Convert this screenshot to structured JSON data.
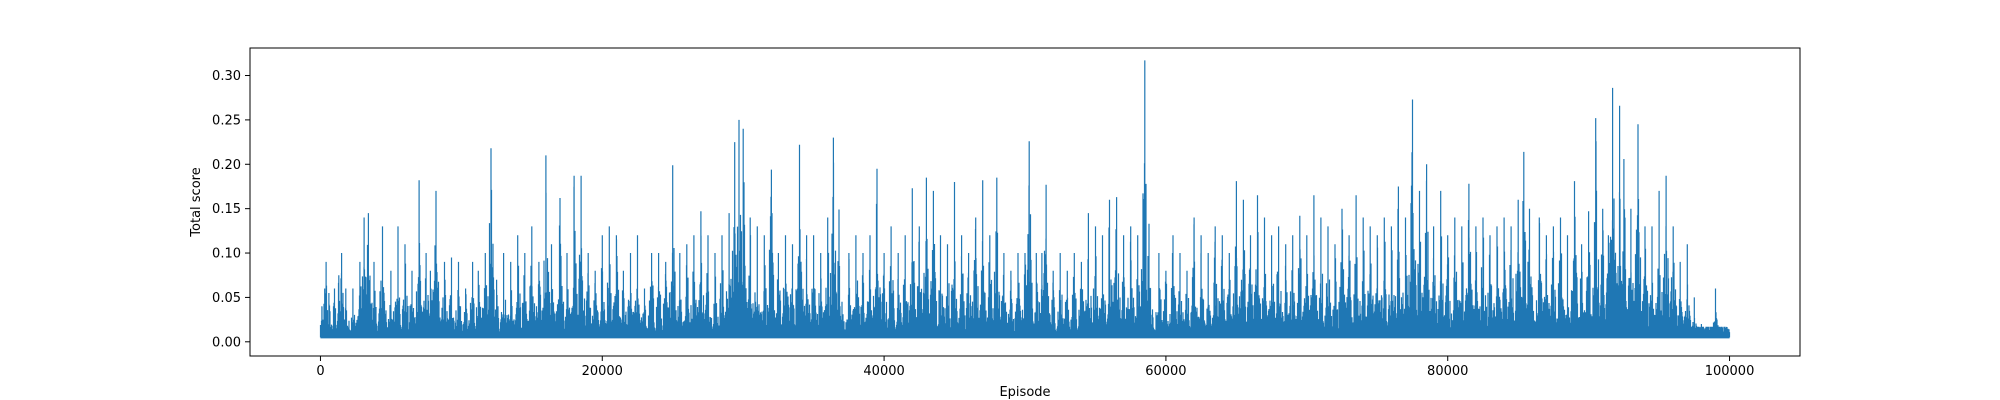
{
  "chart_data": {
    "type": "line",
    "title": "",
    "xlabel": "Episode",
    "ylabel": "Total score",
    "xlim": [
      -5000,
      105000
    ],
    "ylim": [
      -0.016,
      0.331
    ],
    "xticks": [
      0,
      20000,
      40000,
      60000,
      80000,
      100000
    ],
    "xtick_labels": [
      "0",
      "20000",
      "40000",
      "60000",
      "80000",
      "100000"
    ],
    "yticks": [
      0.0,
      0.05,
      0.1,
      0.15,
      0.2,
      0.25,
      0.3
    ],
    "ytick_labels": [
      "0.00",
      "0.05",
      "0.10",
      "0.15",
      "0.20",
      "0.25",
      "0.30"
    ],
    "grid": false,
    "series": [
      {
        "color": "#1f77b4",
        "x_start": 0,
        "x_end": 100000,
        "baseline": 0.005,
        "peaks": [
          [
            100,
            0.04
          ],
          [
            300,
            0.06
          ],
          [
            400,
            0.09
          ],
          [
            600,
            0.055
          ],
          [
            1000,
            0.06
          ],
          [
            1300,
            0.075
          ],
          [
            1500,
            0.1
          ],
          [
            1800,
            0.06
          ],
          [
            2300,
            0.06
          ],
          [
            2800,
            0.09
          ],
          [
            3100,
            0.14
          ],
          [
            3400,
            0.145
          ],
          [
            3800,
            0.09
          ],
          [
            4400,
            0.13
          ],
          [
            5000,
            0.08
          ],
          [
            5500,
            0.13
          ],
          [
            6000,
            0.11
          ],
          [
            6500,
            0.08
          ],
          [
            7000,
            0.182
          ],
          [
            7500,
            0.1
          ],
          [
            7800,
            0.08
          ],
          [
            8200,
            0.17
          ],
          [
            8800,
            0.09
          ],
          [
            9300,
            0.095
          ],
          [
            9800,
            0.09
          ],
          [
            10300,
            0.06
          ],
          [
            10800,
            0.09
          ],
          [
            11200,
            0.08
          ],
          [
            11700,
            0.1
          ],
          [
            12100,
            0.218
          ],
          [
            12500,
            0.07
          ],
          [
            13000,
            0.1
          ],
          [
            13500,
            0.09
          ],
          [
            14000,
            0.12
          ],
          [
            14500,
            0.1
          ],
          [
            15000,
            0.13
          ],
          [
            15500,
            0.09
          ],
          [
            16000,
            0.21
          ],
          [
            16400,
            0.11
          ],
          [
            17000,
            0.162
          ],
          [
            17500,
            0.1
          ],
          [
            18000,
            0.187
          ],
          [
            18500,
            0.187
          ],
          [
            19000,
            0.1
          ],
          [
            19500,
            0.08
          ],
          [
            20000,
            0.12
          ],
          [
            20500,
            0.13
          ],
          [
            21000,
            0.12
          ],
          [
            21500,
            0.08
          ],
          [
            22000,
            0.1
          ],
          [
            22500,
            0.12
          ],
          [
            23000,
            0.06
          ],
          [
            23500,
            0.1
          ],
          [
            24000,
            0.1
          ],
          [
            24500,
            0.09
          ],
          [
            25000,
            0.199
          ],
          [
            25500,
            0.1
          ],
          [
            26000,
            0.11
          ],
          [
            26500,
            0.12
          ],
          [
            27000,
            0.147
          ],
          [
            27500,
            0.12
          ],
          [
            28000,
            0.1
          ],
          [
            28500,
            0.12
          ],
          [
            29000,
            0.145
          ],
          [
            29400,
            0.225
          ],
          [
            29700,
            0.25
          ],
          [
            30000,
            0.24
          ],
          [
            30500,
            0.14
          ],
          [
            31000,
            0.13
          ],
          [
            31500,
            0.12
          ],
          [
            32000,
            0.194
          ],
          [
            32500,
            0.1
          ],
          [
            33000,
            0.12
          ],
          [
            33500,
            0.11
          ],
          [
            34000,
            0.222
          ],
          [
            34500,
            0.12
          ],
          [
            35000,
            0.12
          ],
          [
            35500,
            0.1
          ],
          [
            36000,
            0.14
          ],
          [
            36400,
            0.23
          ],
          [
            36800,
            0.149
          ],
          [
            37500,
            0.1
          ],
          [
            38000,
            0.12
          ],
          [
            38500,
            0.1
          ],
          [
            39000,
            0.12
          ],
          [
            39500,
            0.195
          ],
          [
            40000,
            0.1
          ],
          [
            40500,
            0.13
          ],
          [
            41000,
            0.1
          ],
          [
            41500,
            0.12
          ],
          [
            42000,
            0.173
          ],
          [
            42500,
            0.13
          ],
          [
            43000,
            0.185
          ],
          [
            43500,
            0.17
          ],
          [
            44000,
            0.12
          ],
          [
            44500,
            0.11
          ],
          [
            45000,
            0.18
          ],
          [
            45500,
            0.12
          ],
          [
            46000,
            0.1
          ],
          [
            46500,
            0.14
          ],
          [
            47000,
            0.182
          ],
          [
            47500,
            0.12
          ],
          [
            48000,
            0.185
          ],
          [
            48500,
            0.1
          ],
          [
            49000,
            0.08
          ],
          [
            49500,
            0.1
          ],
          [
            50000,
            0.1
          ],
          [
            50300,
            0.226
          ],
          [
            50800,
            0.1
          ],
          [
            51200,
            0.1
          ],
          [
            51500,
            0.177
          ],
          [
            52000,
            0.08
          ],
          [
            52500,
            0.1
          ],
          [
            53000,
            0.08
          ],
          [
            53500,
            0.1
          ],
          [
            54000,
            0.09
          ],
          [
            54500,
            0.145
          ],
          [
            55000,
            0.13
          ],
          [
            55500,
            0.12
          ],
          [
            56000,
            0.16
          ],
          [
            56500,
            0.163
          ],
          [
            57000,
            0.12
          ],
          [
            57500,
            0.13
          ],
          [
            58000,
            0.12
          ],
          [
            58500,
            0.317
          ],
          [
            58800,
            0.133
          ],
          [
            59500,
            0.1
          ],
          [
            60000,
            0.08
          ],
          [
            60500,
            0.12
          ],
          [
            61000,
            0.1
          ],
          [
            61500,
            0.08
          ],
          [
            62000,
            0.14
          ],
          [
            62500,
            0.12
          ],
          [
            63000,
            0.1
          ],
          [
            63500,
            0.13
          ],
          [
            64000,
            0.12
          ],
          [
            64500,
            0.1
          ],
          [
            65000,
            0.181
          ],
          [
            65500,
            0.16
          ],
          [
            66000,
            0.12
          ],
          [
            66500,
            0.165
          ],
          [
            67000,
            0.14
          ],
          [
            67500,
            0.12
          ],
          [
            68000,
            0.13
          ],
          [
            68500,
            0.11
          ],
          [
            69000,
            0.12
          ],
          [
            69500,
            0.142
          ],
          [
            70000,
            0.12
          ],
          [
            70500,
            0.165
          ],
          [
            71000,
            0.14
          ],
          [
            71500,
            0.13
          ],
          [
            72000,
            0.11
          ],
          [
            72500,
            0.15
          ],
          [
            73000,
            0.12
          ],
          [
            73500,
            0.165
          ],
          [
            74000,
            0.14
          ],
          [
            74500,
            0.13
          ],
          [
            75000,
            0.12
          ],
          [
            75500,
            0.14
          ],
          [
            76000,
            0.13
          ],
          [
            76500,
            0.175
          ],
          [
            77000,
            0.14
          ],
          [
            77500,
            0.273
          ],
          [
            78000,
            0.17
          ],
          [
            78500,
            0.2
          ],
          [
            79000,
            0.13
          ],
          [
            79500,
            0.17
          ],
          [
            80000,
            0.12
          ],
          [
            80500,
            0.14
          ],
          [
            81000,
            0.13
          ],
          [
            81500,
            0.178
          ],
          [
            82000,
            0.13
          ],
          [
            82500,
            0.14
          ],
          [
            83000,
            0.12
          ],
          [
            83500,
            0.13
          ],
          [
            84000,
            0.14
          ],
          [
            84500,
            0.13
          ],
          [
            85000,
            0.16
          ],
          [
            85400,
            0.214
          ],
          [
            85800,
            0.15
          ],
          [
            86500,
            0.14
          ],
          [
            87000,
            0.12
          ],
          [
            87500,
            0.13
          ],
          [
            88000,
            0.14
          ],
          [
            88500,
            0.12
          ],
          [
            89000,
            0.181
          ],
          [
            89500,
            0.11
          ],
          [
            90000,
            0.147
          ],
          [
            90500,
            0.252
          ],
          [
            91000,
            0.15
          ],
          [
            91400,
            0.12
          ],
          [
            91700,
            0.286
          ],
          [
            92200,
            0.266
          ],
          [
            92500,
            0.206
          ],
          [
            93000,
            0.15
          ],
          [
            93500,
            0.245
          ],
          [
            94000,
            0.13
          ],
          [
            94500,
            0.13
          ],
          [
            95000,
            0.17
          ],
          [
            95500,
            0.187
          ],
          [
            96000,
            0.13
          ],
          [
            96500,
            0.09
          ],
          [
            97000,
            0.11
          ],
          [
            97500,
            0.05
          ],
          [
            98000,
            0.02
          ],
          [
            98500,
            0.015
          ],
          [
            99000,
            0.06
          ],
          [
            99500,
            0.01
          ]
        ]
      }
    ]
  }
}
